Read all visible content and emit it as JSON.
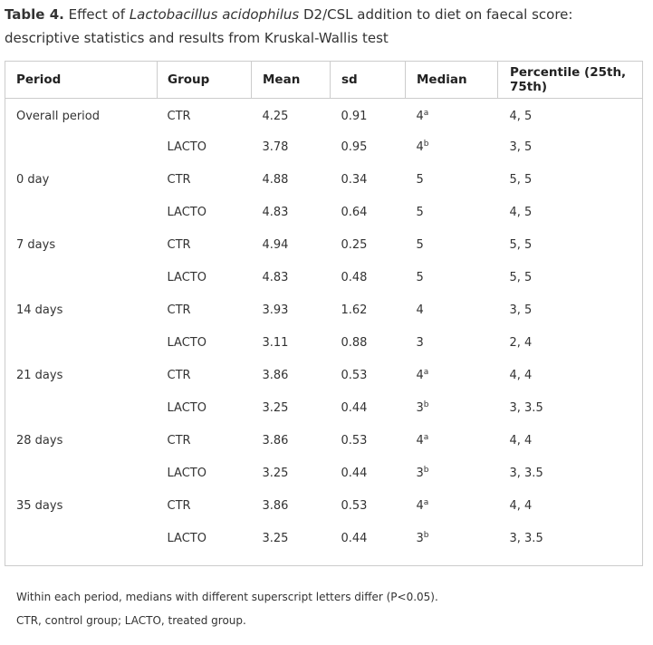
{
  "caption": {
    "label": "Table 4.",
    "text_before": "Effect of",
    "species": "Lactobacillus acidophilus",
    "text_after": "D2/CSL addition to diet on faecal score: descriptive statistics and results from Kruskal-Wallis test"
  },
  "table": {
    "headers": [
      "Period",
      "Group",
      "Mean",
      "sd",
      "Median",
      "Percentile (25th, 75th)"
    ],
    "rows": [
      {
        "period": "Overall period",
        "group": "CTR",
        "mean": "4.25",
        "sd": "0.91",
        "median": "4",
        "sup": "a",
        "percentile": "4, 5"
      },
      {
        "period": "",
        "group": "LACTO",
        "mean": "3.78",
        "sd": "0.95",
        "median": "4",
        "sup": "b",
        "percentile": "3, 5"
      },
      {
        "period": "0 day",
        "group": "CTR",
        "mean": "4.88",
        "sd": "0.34",
        "median": "5",
        "sup": "",
        "percentile": "5, 5"
      },
      {
        "period": "",
        "group": "LACTO",
        "mean": "4.83",
        "sd": "0.64",
        "median": "5",
        "sup": "",
        "percentile": "4, 5"
      },
      {
        "period": "7 days",
        "group": "CTR",
        "mean": "4.94",
        "sd": "0.25",
        "median": "5",
        "sup": "",
        "percentile": "5, 5"
      },
      {
        "period": "",
        "group": "LACTO",
        "mean": "4.83",
        "sd": "0.48",
        "median": "5",
        "sup": "",
        "percentile": "5, 5"
      },
      {
        "period": "14 days",
        "group": "CTR",
        "mean": "3.93",
        "sd": "1.62",
        "median": "4",
        "sup": "",
        "percentile": "3, 5"
      },
      {
        "period": "",
        "group": "LACTO",
        "mean": "3.11",
        "sd": "0.88",
        "median": "3",
        "sup": "",
        "percentile": "2, 4"
      },
      {
        "period": "21 days",
        "group": "CTR",
        "mean": "3.86",
        "sd": "0.53",
        "median": "4",
        "sup": "a",
        "percentile": "4, 4"
      },
      {
        "period": "",
        "group": "LACTO",
        "mean": "3.25",
        "sd": "0.44",
        "median": "3",
        "sup": "b",
        "percentile": "3, 3.5"
      },
      {
        "period": "28 days",
        "group": "CTR",
        "mean": "3.86",
        "sd": "0.53",
        "median": "4",
        "sup": "a",
        "percentile": "4, 4"
      },
      {
        "period": "",
        "group": "LACTO",
        "mean": "3.25",
        "sd": "0.44",
        "median": "3",
        "sup": "b",
        "percentile": "3, 3.5"
      },
      {
        "period": "35 days",
        "group": "CTR",
        "mean": "3.86",
        "sd": "0.53",
        "median": "4",
        "sup": "a",
        "percentile": "4, 4"
      },
      {
        "period": "",
        "group": "LACTO",
        "mean": "3.25",
        "sd": "0.44",
        "median": "3",
        "sup": "b",
        "percentile": "3, 3.5"
      }
    ]
  },
  "notes": [
    "Within each period, medians with different superscript letters differ (P<0.05).",
    "CTR, control group; LACTO, treated group."
  ]
}
